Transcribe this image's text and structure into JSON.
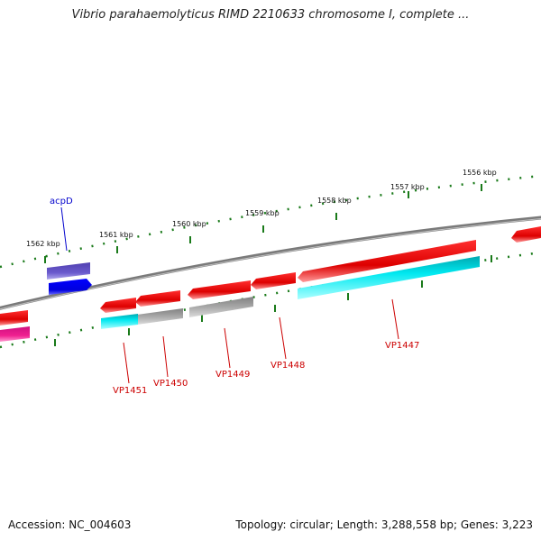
{
  "title": "Vibrio parahaemolyticus RIMD 2210633 chromosome I, complete ...",
  "footer": {
    "accession": "Accession: NC_004603",
    "summary": "Topology: circular; Length: 3,288,558 bp; Genes: 3,223"
  },
  "ticks": [
    {
      "label": "1556 kbp"
    },
    {
      "label": "1557 kbp"
    },
    {
      "label": "1558 kbp"
    },
    {
      "label": "1559 kbp"
    },
    {
      "label": "1560 kbp"
    },
    {
      "label": "1561 kbp"
    },
    {
      "label": "1562 kbp"
    }
  ],
  "gene_labels": [
    {
      "name": "acpD",
      "color": "#0000cc"
    },
    {
      "name": "VP1451",
      "color": "#cc0000"
    },
    {
      "name": "VP1450",
      "color": "#cc0000"
    },
    {
      "name": "VP1449",
      "color": "#cc0000"
    },
    {
      "name": "VP1448",
      "color": "#cc0000"
    },
    {
      "name": "VP1447",
      "color": "#cc0000"
    }
  ],
  "colors": {
    "backbone": "#808080",
    "tick_dots": "#1a7a1a",
    "gene_red": "#e80000",
    "gene_cyan": "#00e5ee",
    "gene_gray": "#a8a8a8",
    "gene_blue": "#0000ee",
    "gene_slate": "#6a5acd",
    "gene_pink": "#e6198c"
  }
}
